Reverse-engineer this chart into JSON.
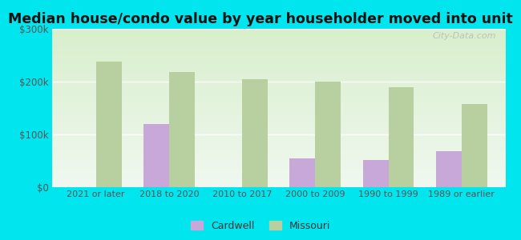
{
  "title": "Median house/condo value by year householder moved into unit",
  "categories": [
    "2021 or later",
    "2018 to 2020",
    "2010 to 2017",
    "2000 to 2009",
    "1990 to 1999",
    "1989 or earlier"
  ],
  "cardwell_values": [
    0,
    120000,
    0,
    55000,
    52000,
    68000
  ],
  "missouri_values": [
    238000,
    218000,
    204000,
    200000,
    190000,
    158000
  ],
  "cardwell_color": "#c8a8d8",
  "missouri_color": "#b8cfa0",
  "background_outer": "#00e5ee",
  "gradient_top": "#f0f8f0",
  "gradient_bottom": "#d8efcc",
  "ylim": [
    0,
    300000
  ],
  "yticks": [
    0,
    100000,
    200000,
    300000
  ],
  "ytick_labels": [
    "$0",
    "$100k",
    "$200k",
    "$300k"
  ],
  "legend_cardwell": "Cardwell",
  "legend_missouri": "Missouri",
  "bar_width": 0.35,
  "title_fontsize": 12.5,
  "watermark": "City-Data.com"
}
